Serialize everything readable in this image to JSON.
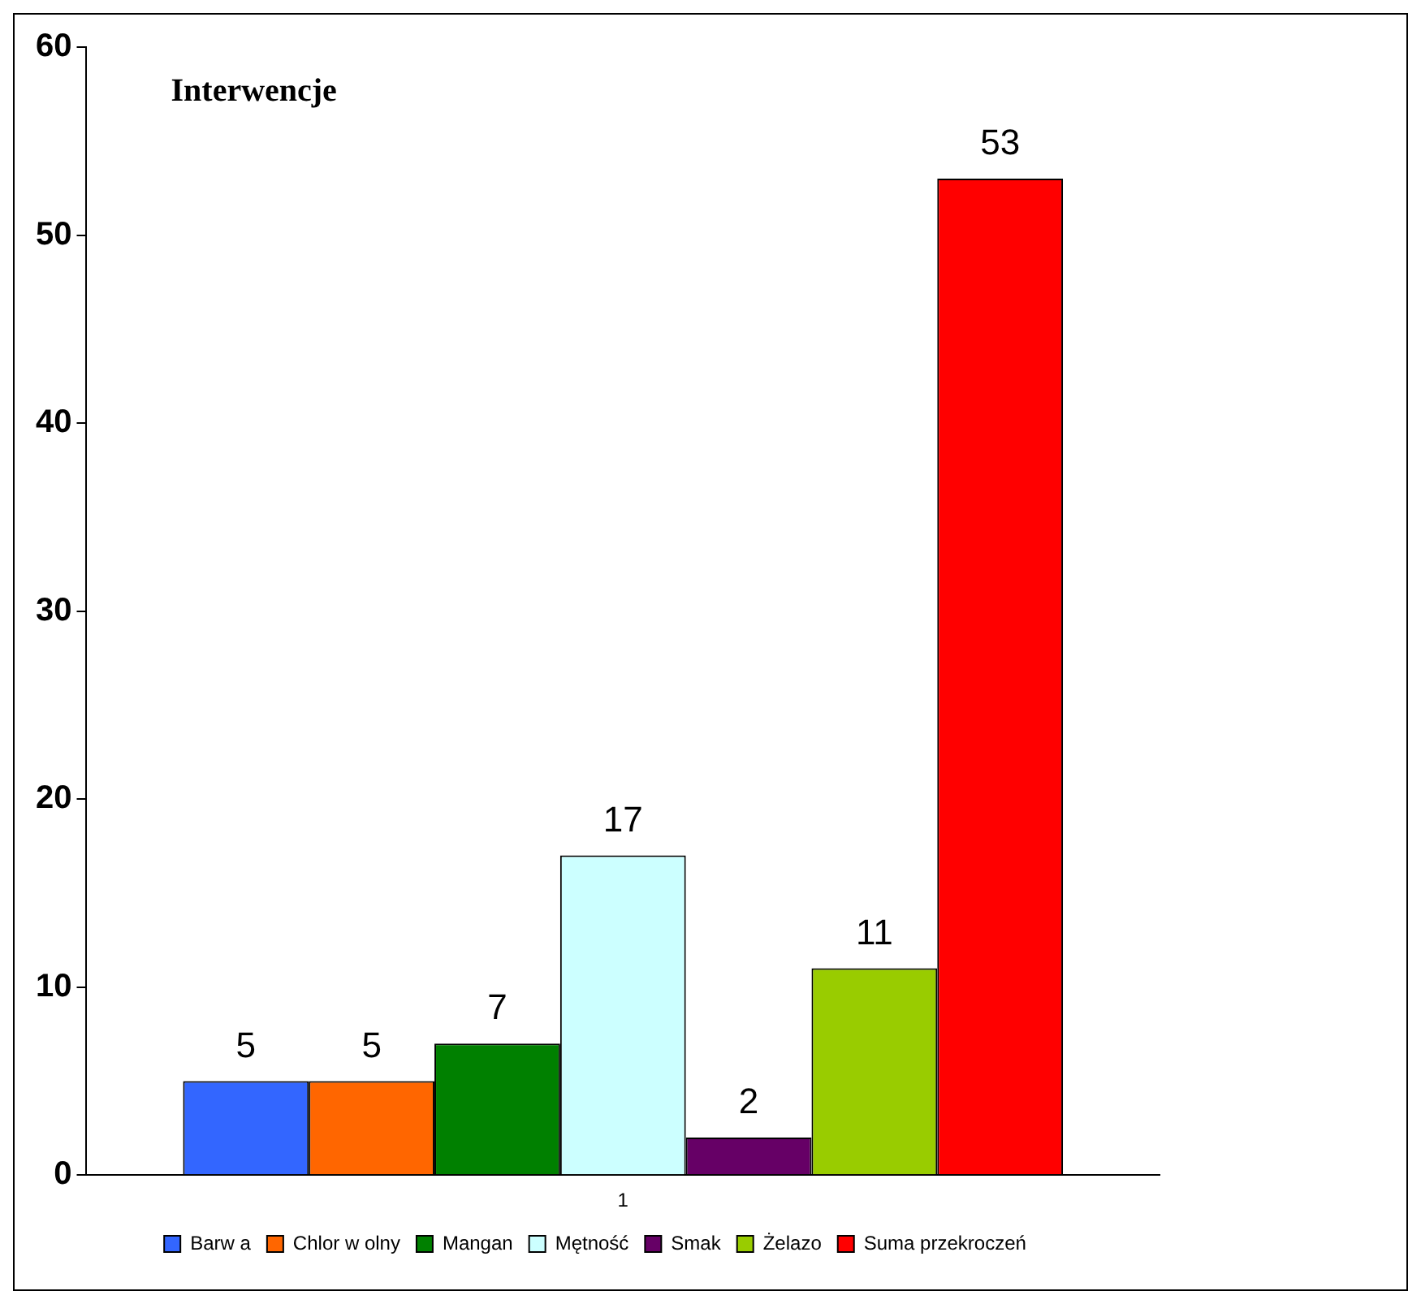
{
  "chart_data": {
    "type": "bar",
    "title": "Interwencje",
    "categories": [
      "1"
    ],
    "series": [
      {
        "name": "Barw a",
        "color": "#3366ff",
        "values": [
          5
        ]
      },
      {
        "name": "Chlor w olny",
        "color": "#ff6600",
        "values": [
          5
        ]
      },
      {
        "name": "Mangan",
        "color": "#008000",
        "values": [
          7
        ]
      },
      {
        "name": "Mętność",
        "color": "#ccffff",
        "values": [
          17
        ]
      },
      {
        "name": "Smak",
        "color": "#660066",
        "values": [
          2
        ]
      },
      {
        "name": "Żelazo",
        "color": "#99cc00",
        "values": [
          11
        ]
      },
      {
        "name": "Suma przekroczeń",
        "color": "#ff0000",
        "values": [
          53
        ]
      }
    ],
    "ylim": [
      0,
      60
    ],
    "yticks": [
      0,
      10,
      20,
      30,
      40,
      50,
      60
    ],
    "grid": false,
    "legend": "bottom",
    "data_labels": true
  }
}
